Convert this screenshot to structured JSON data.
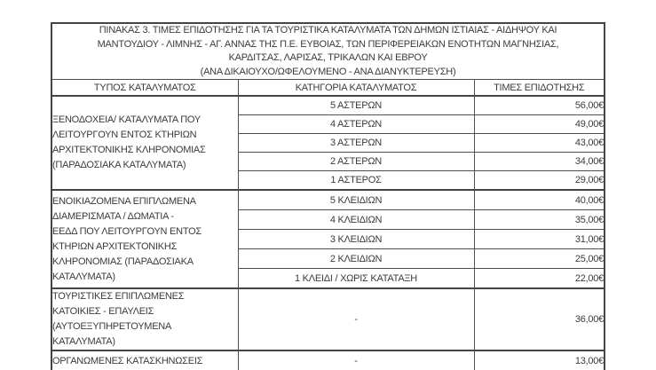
{
  "table": {
    "title_lines": [
      "ΠΙΝΑΚΑΣ 3. ΤΙΜΕΣ ΕΠΙΔΟΤΗΣΗΣ ΓΙΑ ΤΑ ΤΟΥΡΙΣΤΙΚΑ ΚΑΤΑΛΥΜΑΤΑ ΤΩΝ ΔΗΜΩΝ ΙΣΤΙΑΙΑΣ - ΑΙΔΗΨΟΥ ΚΑΙ",
      "ΜΑΝΤΟΥΔΙΟΥ - ΛΙΜΝΗΣ - ΑΓ. ΑΝΝΑΣ ΤΗΣ Π.Ε. ΕΥΒΟΙΑΣ, ΤΩΝ ΠΕΡΙΦΕΡΕΙΑΚΩΝ ΕΝΟΤΗΤΩΝ ΜΑΓΝΗΣΙΑΣ,",
      "ΚΑΡΔΙΤΣΑΣ, ΛΑΡΙΣΑΣ, ΤΡΙΚΑΛΩΝ ΚΑΙ ΕΒΡΟΥ",
      "(ΑΝΑ ΔΙΚΑΙΟΥΧΟ/ΩΦΕΛΟΥΜΕΝΟ - ΑΝΑ ΔΙΑΝΥΚΤΕΡΕΥΣΗ)"
    ],
    "columns": {
      "type": "ΤΥΠΟΣ ΚΑΤΑΛΥΜΑΤΟΣ",
      "category": "ΚΑΤΗΓΟΡΙΑ ΚΑΤΑΛΥΜΑΤΟΣ",
      "price": "ΤΙΜΕΣ ΕΠΙΔΟΤΗΣΗΣ"
    },
    "groups": [
      {
        "type_lines": [
          "ΞΕΝΟΔΟΧΕΙΑ/ ΚΑΤΑΛΥΜΑΤΑ ΠΟΥ",
          "ΛΕΙΤΟΥΡΓΟΥΝ ΕΝΤΟΣ ΚΤΗΡΙΩΝ",
          "ΑΡΧΙΤΕΚΤΟΝΙΚΗΣ ΚΛΗΡΟΝΟΜΙΑΣ",
          "(ΠΑΡΑΔΟΣΙΑΚΑ ΚΑΤΑΛΥΜΑΤΑ)"
        ],
        "rows": [
          {
            "category": "5 ΑΣΤΕΡΩΝ",
            "price": "56,00€"
          },
          {
            "category": "4 ΑΣΤΕΡΩΝ",
            "price": "49,00€"
          },
          {
            "category": "3 ΑΣΤΕΡΩΝ",
            "price": "43,00€"
          },
          {
            "category": "2 ΑΣΤΕΡΩΝ",
            "price": "34,00€"
          },
          {
            "category": "1 ΑΣΤΕΡΟΣ",
            "price": "29,00€"
          }
        ]
      },
      {
        "type_lines": [
          "ΕΝΟΙΚΙΑΖΟΜΕΝΑ ΕΠΙΠΛΩΜΕΝΑ",
          "ΔΙΑΜΕΡΙΣΜΑΤΑ / ΔΩΜΑΤΙΑ -",
          "ΕΕΔΔ ΠΟΥ ΛΕΙΤΟΥΡΓΟΥΝ ΕΝΤΟΣ",
          "ΚΤΗΡΙΩΝ ΑΡΧΙΤΕΚΤΟΝΙΚΗΣ",
          "ΚΛΗΡΟΝΟΜΙΑΣ (ΠΑΡΑΔΟΣΙΑΚΑ",
          "ΚΑΤΑΛΥΜΑΤΑ)"
        ],
        "rows": [
          {
            "category": "5 ΚΛΕΙΔΙΩΝ",
            "price": "40,00€"
          },
          {
            "category": "4 ΚΛΕΙΔΙΩΝ",
            "price": "35,00€"
          },
          {
            "category": "3 ΚΛΕΙΔΙΩΝ",
            "price": "31,00€"
          },
          {
            "category": "2 ΚΛΕΙΔΙΩΝ",
            "price": "25,00€"
          },
          {
            "category": "1 ΚΛΕΙΔΙ / ΧΩΡΙΣ ΚΑΤΑΤΑΞΗ",
            "price": "22,00€"
          }
        ]
      },
      {
        "type_lines": [
          "ΤΟΥΡΙΣΤΙΚΕΣ ΕΠΙΠΛΩΜΕΝΕΣ",
          "ΚΑΤΟΙΚΙΕΣ - ΕΠΑΥΛΕΙΣ",
          "(ΑΥΤΟΕΞΥΠΗΡΕΤΟΥΜΕΝΑ",
          "ΚΑΤΑΛΥΜΑΤΑ)"
        ],
        "rows": [
          {
            "category": "-",
            "price": "36,00€"
          }
        ]
      },
      {
        "type_lines": [
          "ΟΡΓΑΝΩΜΕΝΕΣ ΚΑΤΑΣΚΗΝΩΣΕΙΣ"
        ],
        "rows": [
          {
            "category": "-",
            "price": "13,00€"
          }
        ]
      }
    ]
  },
  "colors": {
    "background": "#ffffff",
    "text": "#3b3b3b",
    "border_outer": "#454545",
    "border_inner": "#4e4e4e"
  }
}
